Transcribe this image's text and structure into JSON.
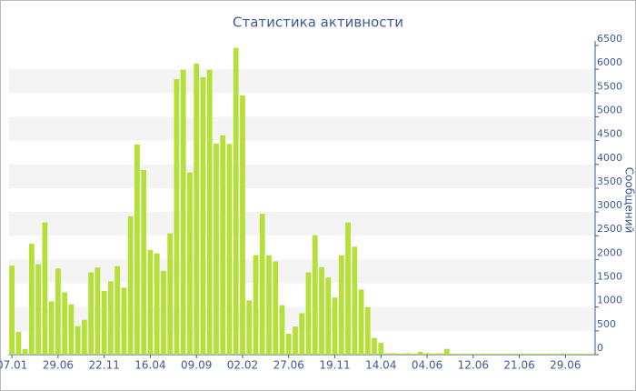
{
  "chart_data": {
    "type": "bar",
    "title": "Статистика активности",
    "y_label": "Сообщений",
    "categories": [
      "07.01",
      null,
      null,
      null,
      null,
      null,
      null,
      "29.06",
      null,
      null,
      null,
      null,
      null,
      null,
      "22.11",
      null,
      null,
      null,
      null,
      null,
      null,
      "16.04",
      null,
      null,
      null,
      null,
      null,
      null,
      "09.09",
      null,
      null,
      null,
      null,
      null,
      null,
      "02.02",
      null,
      null,
      null,
      null,
      null,
      null,
      "27.06",
      null,
      null,
      null,
      null,
      null,
      null,
      "19.11",
      null,
      null,
      null,
      null,
      null,
      null,
      "14.04",
      null,
      null,
      null,
      null,
      null,
      null,
      "04.06",
      null,
      null,
      null,
      null,
      null,
      null,
      "12.06",
      null,
      null,
      null,
      null,
      null,
      null,
      "21.06",
      null,
      null,
      null,
      null,
      null,
      null,
      "29.06",
      null,
      null,
      null,
      null
    ],
    "values": [
      1870,
      480,
      120,
      2330,
      1900,
      2780,
      1120,
      1810,
      1310,
      1060,
      600,
      730,
      1730,
      1830,
      1340,
      1540,
      1860,
      1410,
      2910,
      4420,
      3880,
      2200,
      2130,
      1760,
      2550,
      5790,
      5990,
      3830,
      6120,
      5830,
      5990,
      4440,
      4610,
      4430,
      6450,
      5450,
      1140,
      2090,
      2960,
      2090,
      1960,
      1040,
      440,
      590,
      870,
      1730,
      2510,
      1840,
      1620,
      1200,
      2090,
      2780,
      2270,
      1370,
      1000,
      350,
      250,
      30,
      30,
      20,
      30,
      20,
      60,
      30,
      20,
      30,
      120,
      20,
      20,
      20,
      20,
      20,
      20,
      20,
      20,
      20,
      20,
      20,
      20,
      20,
      20,
      20,
      20,
      20,
      20,
      20,
      20,
      20,
      20
    ],
    "color": "#b5e03a",
    "ylim": [
      0,
      6500
    ],
    "yticks": [
      0,
      500,
      1000,
      1500,
      2000,
      2500,
      3000,
      3500,
      4000,
      4500,
      5000,
      5500,
      6000,
      6500
    ],
    "grid": true
  }
}
